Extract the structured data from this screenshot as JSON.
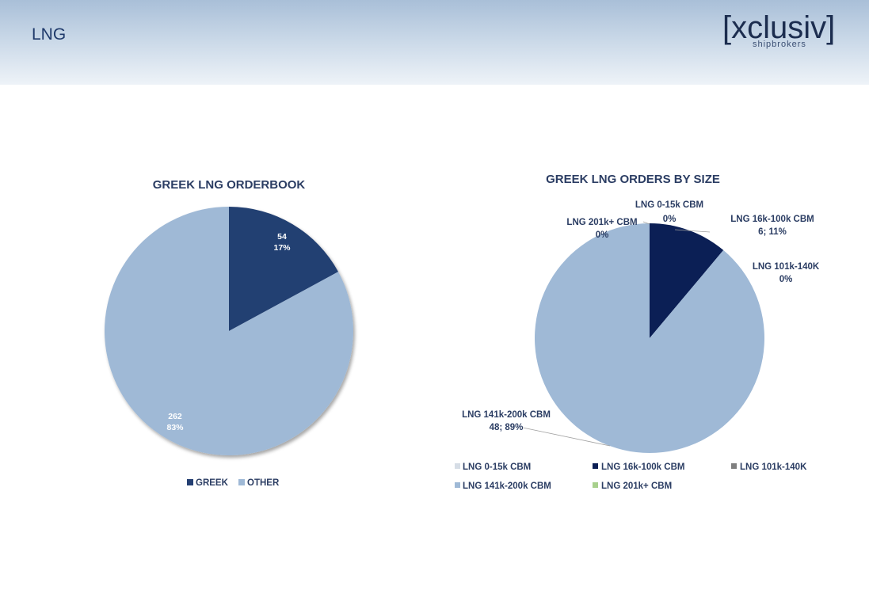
{
  "page": {
    "title": "LNG",
    "logo": {
      "main": "[xclusiv]",
      "sub": "shipbrokers"
    }
  },
  "colors": {
    "greek": "#243f72",
    "other": "#9fb9d6",
    "s0_15k": "#d6dde6",
    "s16_100k": "#0b1f55",
    "s101_140k": "#7f7f7f",
    "s141_200k": "#9fb9d6",
    "s201k": "#a8d08d"
  },
  "chart_data": [
    {
      "type": "pie",
      "title": "GREEK LNG ORDERBOOK",
      "legend_position": "bottom",
      "slices": [
        {
          "name": "GREEK",
          "value": 54,
          "percent": "17%",
          "color": "#243f72"
        },
        {
          "name": "OTHER",
          "value": 262,
          "percent": "83%",
          "color": "#9fb9d6"
        }
      ]
    },
    {
      "type": "pie",
      "title": "GREEK LNG ORDERS BY SIZE",
      "legend_position": "bottom",
      "slices": [
        {
          "name": "LNG 0-15k CBM",
          "value": 0,
          "label_text": "0%",
          "color": "#d6dde6"
        },
        {
          "name": "LNG 16k-100k CBM",
          "value": 6,
          "label_text": "6; 11%",
          "color": "#0b1f55"
        },
        {
          "name": "LNG 101k-140K",
          "value": 0,
          "label_text": "0%",
          "color": "#7f7f7f"
        },
        {
          "name": "LNG 141k-200k CBM",
          "value": 48,
          "label_text": "48; 89%",
          "color": "#9fb9d6"
        },
        {
          "name": "LNG 201k+ CBM",
          "value": 0,
          "label_text": "0%",
          "color": "#a8d08d"
        }
      ]
    }
  ]
}
